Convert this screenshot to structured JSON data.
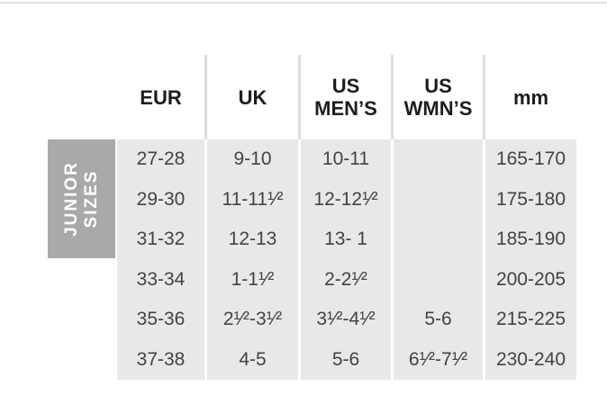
{
  "chart_data": {
    "type": "table",
    "group_label": "JUNIOR\nSIZES",
    "columns": [
      "EUR",
      "UK",
      "US\nMEN’S",
      "US\nWMN’S",
      "mm"
    ],
    "rows": [
      [
        "27-28",
        "9-10",
        "10-11",
        "",
        "165-170"
      ],
      [
        "29-30",
        "11-11¹⁄²",
        "12-12¹⁄²",
        "",
        "175-180"
      ],
      [
        "31-32",
        "12-13",
        "13- 1",
        "",
        "185-190"
      ],
      [
        "33-34",
        "1-1¹⁄²",
        "2-2¹⁄²",
        "",
        "200-205"
      ],
      [
        "35-36",
        "2¹⁄²-3¹⁄²",
        "3¹⁄²-4¹⁄²",
        "5-6",
        "215-225"
      ],
      [
        "37-38",
        "4-5",
        "5-6",
        "6¹⁄²-7¹⁄²",
        "230-240"
      ]
    ]
  },
  "colors": {
    "cell_bg": "#e8e8e8",
    "group_label_bg": "#a9a9a9",
    "group_label_text": "#ffffff",
    "header_text": "#1d1d1b",
    "cell_text": "#434343",
    "top_border": "#e2e2e2",
    "header_separator": "#dedede"
  }
}
